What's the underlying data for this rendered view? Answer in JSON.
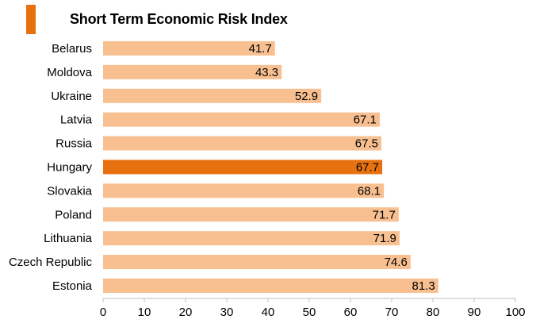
{
  "chart_data": {
    "type": "bar",
    "orientation": "horizontal",
    "title": "Short Term Economic Risk Index",
    "categories": [
      "Belarus",
      "Moldova",
      "Ukraine",
      "Latvia",
      "Russia",
      "Hungary",
      "Slovakia",
      "Poland",
      "Lithuania",
      "Czech Republic",
      "Estonia"
    ],
    "values": [
      41.7,
      43.3,
      52.9,
      67.1,
      67.5,
      67.7,
      68.1,
      71.7,
      71.9,
      74.6,
      81.3
    ],
    "value_labels": [
      "41.7",
      "43.3",
      "52.9",
      "67.1",
      "67.5",
      "67.7",
      "68.1",
      "71.7",
      "71.9",
      "74.6",
      "81.3"
    ],
    "highlight_category": "Hungary",
    "xlim": [
      0,
      100
    ],
    "x_ticks": [
      "0",
      "10",
      "20",
      "30",
      "40",
      "50",
      "60",
      "70",
      "80",
      "90",
      "100"
    ],
    "grid": false,
    "xlabel": "",
    "ylabel": ""
  },
  "colors": {
    "bar": "#f8c091",
    "highlight_bar": "#e8710f",
    "title_mark": "#e8710f",
    "text": "#000000",
    "axis": "#bfbfbf"
  }
}
